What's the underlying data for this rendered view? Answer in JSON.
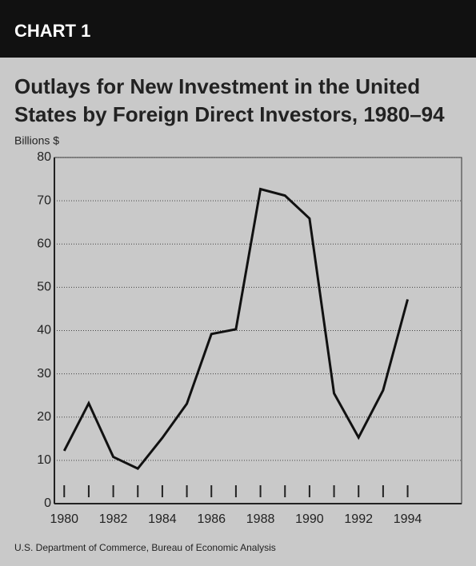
{
  "chart_data": {
    "type": "line",
    "header": "CHART 1",
    "title": [
      "Outlays for New Investment in the United",
      "States by Foreign Direct Investors, 1980–94"
    ],
    "y_label": "Billions $",
    "source": "U.S. Department of Commerce, Bureau of Economic Analysis",
    "x": [
      1980,
      1981,
      1982,
      1983,
      1984,
      1985,
      1986,
      1987,
      1988,
      1989,
      1990,
      1991,
      1992,
      1993,
      1994
    ],
    "series": [
      {
        "name": "Outlays",
        "color": "#111111",
        "values": [
          12.2,
          23.2,
          10.8,
          8.1,
          15.2,
          23.1,
          39.2,
          40.3,
          72.7,
          71.2,
          65.9,
          25.5,
          15.3,
          26.2,
          47.2
        ]
      }
    ],
    "xlim": [
      1979.6,
      1996.2
    ],
    "xticks": [
      1980,
      1982,
      1984,
      1986,
      1988,
      1990,
      1992,
      1994
    ],
    "xminorticks": [
      1980,
      1981,
      1982,
      1983,
      1984,
      1985,
      1986,
      1987,
      1988,
      1989,
      1990,
      1991,
      1992,
      1993,
      1994
    ],
    "ylim": [
      0,
      80
    ],
    "yticks": [
      0,
      10,
      20,
      30,
      40,
      50,
      60,
      70,
      80
    ],
    "grid": true
  }
}
